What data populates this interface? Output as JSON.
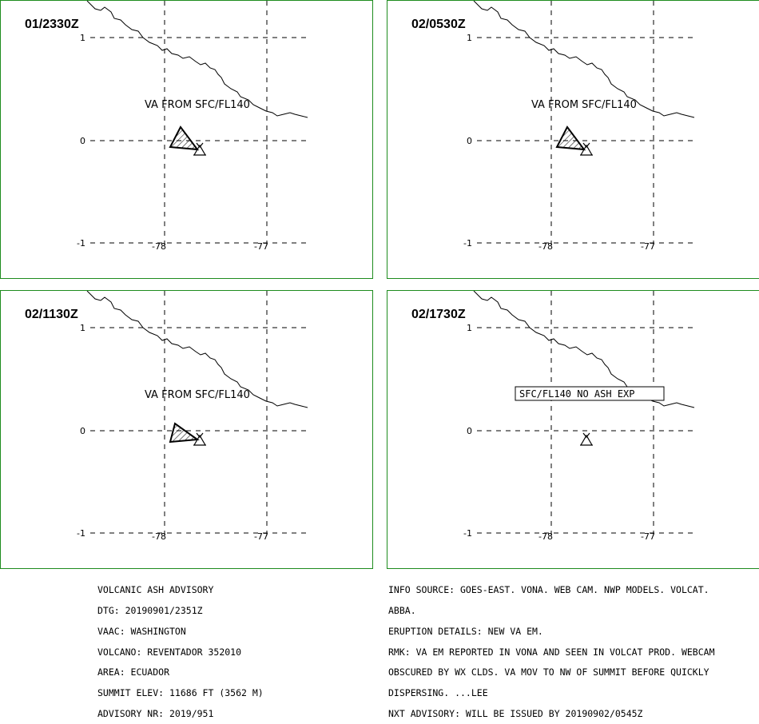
{
  "panels": [
    {
      "time": "01/2330Z",
      "label": "VA FROM SFC/FL140",
      "boxed": false,
      "ash": true
    },
    {
      "time": "02/0530Z",
      "label": "VA FROM SFC/FL140",
      "boxed": false,
      "ash": true
    },
    {
      "time": "02/1130Z",
      "label": "VA FROM SFC/FL140",
      "boxed": false,
      "ash": true
    },
    {
      "time": "02/1730Z",
      "label": "SFC/FL140 NO ASH EXP",
      "boxed": true,
      "ash": false
    }
  ],
  "axes": {
    "lat_labels": [
      "1",
      "0",
      "-1"
    ],
    "lon_labels": [
      "-78",
      "-77"
    ]
  },
  "advisory_left": [
    "VOLCANIC ASH ADVISORY",
    "DTG: 20190901/2351Z",
    "VAAC: WASHINGTON",
    "VOLCANO: REVENTADOR 352010",
    "AREA: ECUADOR",
    "SUMMIT ELEV: 11686 FT (3562 M)",
    "ADVISORY NR: 2019/951"
  ],
  "advisory_right": [
    "INFO SOURCE: GOES-EAST. VONA. WEB CAM. NWP MODELS. VOLCAT.",
    "ABBA.",
    "ERUPTION DETAILS: NEW VA EM.",
    "RMK: VA EM REPORTED IN VONA AND SEEN IN VOLCAT PROD. WEBCAM",
    "OBSCURED BY WX CLDS. VA MOV TO NW OF SUMMIT BEFORE QUICKLY",
    "DISPERSING. ...LEE",
    "NXT ADVISORY: WILL BE ISSUED BY 20190902/0545Z"
  ],
  "colors": {
    "panel_border": "#1e8c1e",
    "line": "#000000"
  }
}
